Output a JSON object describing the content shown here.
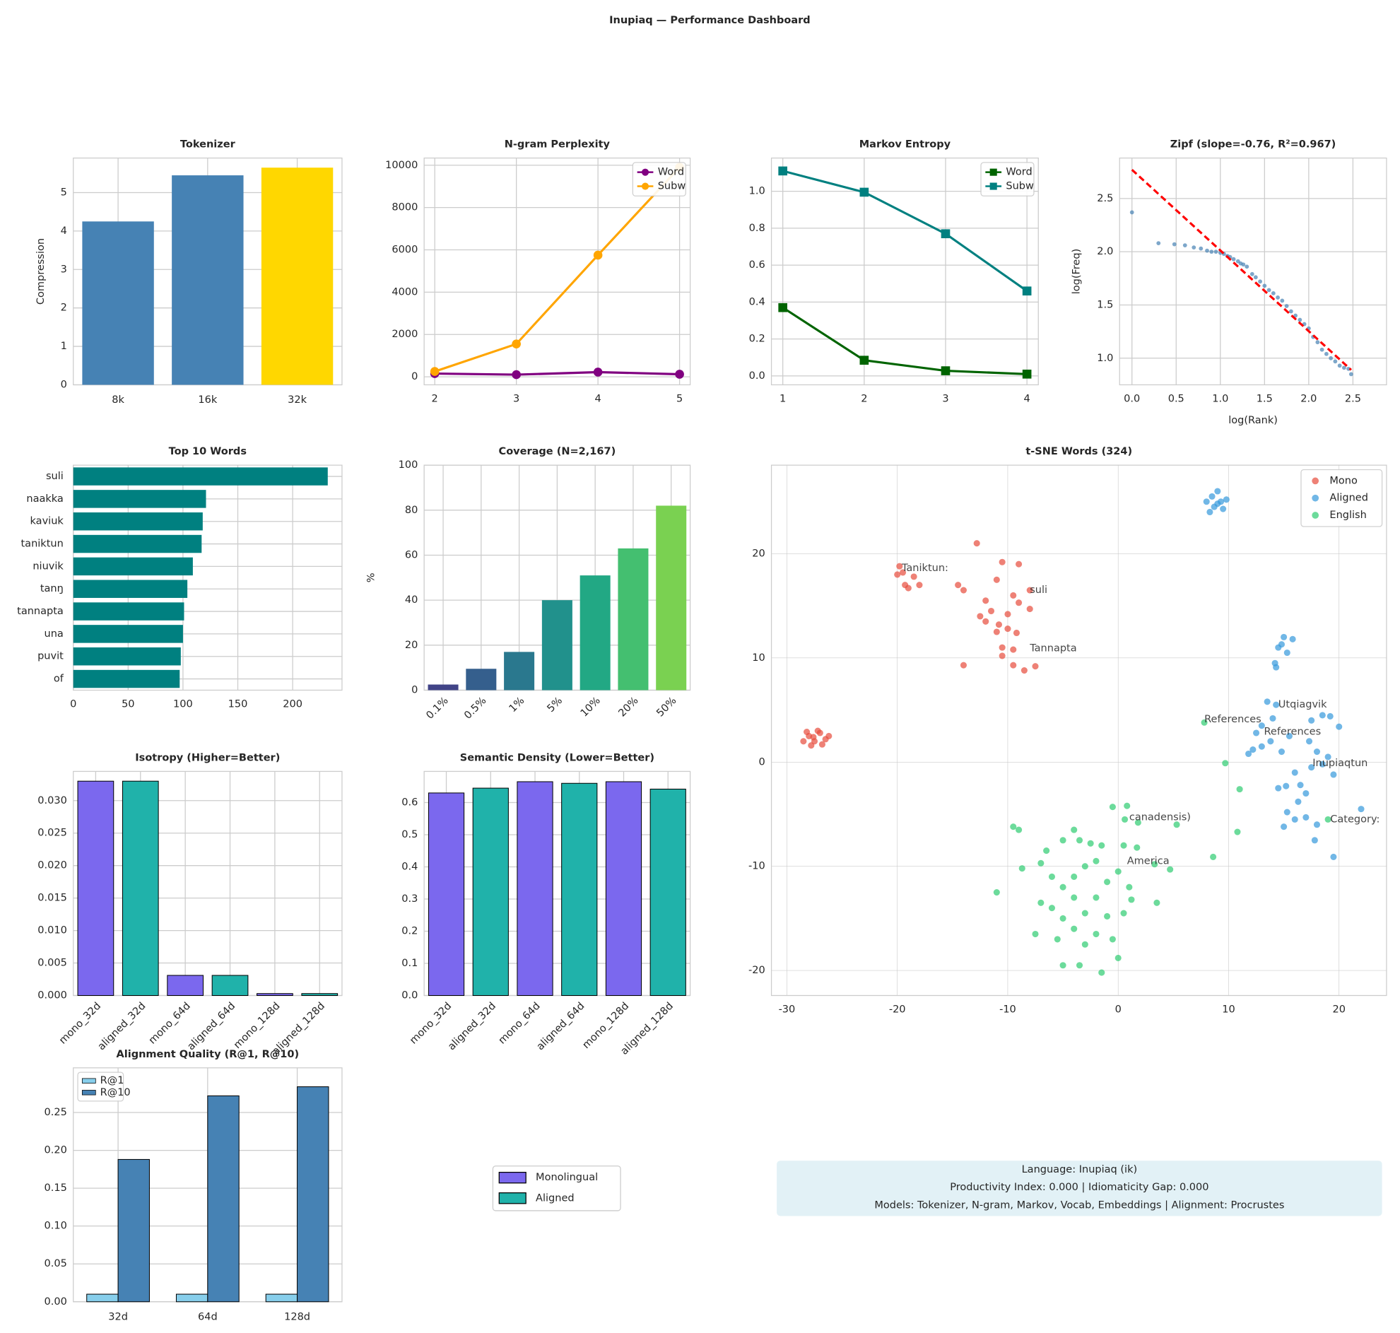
{
  "title": "Inupiaq — Performance Dashboard",
  "chart_data": [
    {
      "type": "bar",
      "title": "Tokenizer",
      "ylabel": "Compression",
      "categories": [
        "8k",
        "16k",
        "32k"
      ],
      "values": [
        4.25,
        5.45,
        5.65
      ],
      "colors": [
        "#4682b4",
        "#4682b4",
        "#ffd700"
      ],
      "ylim": [
        0,
        5.9
      ],
      "yticks": [
        0,
        1,
        2,
        3,
        4,
        5
      ],
      "grid": true
    },
    {
      "type": "line",
      "title": "N-gram Perplexity",
      "x": [
        2,
        3,
        4,
        5
      ],
      "series": [
        {
          "name": "Word",
          "color": "#800080",
          "marker": "circle",
          "values": [
            150,
            100,
            220,
            120
          ]
        },
        {
          "name": "Subw",
          "color": "#ffa500",
          "marker": "circle",
          "values": [
            250,
            1550,
            5750,
            9900
          ]
        }
      ],
      "xlim": [
        1.87,
        5.13
      ],
      "xticks": [
        2,
        3,
        4,
        5
      ],
      "ylim": [
        -380,
        10340
      ],
      "yticks": [
        0,
        2000,
        4000,
        6000,
        8000,
        10000
      ],
      "legend": "upper right",
      "grid": true
    },
    {
      "type": "line",
      "title": "Markov Entropy",
      "x": [
        1,
        2,
        3,
        4
      ],
      "series": [
        {
          "name": "Word",
          "color": "#006400",
          "marker": "square",
          "values": [
            0.37,
            0.085,
            0.028,
            0.01
          ]
        },
        {
          "name": "Subw",
          "color": "#008080",
          "marker": "square",
          "values": [
            1.11,
            0.995,
            0.77,
            0.46
          ]
        }
      ],
      "xlim": [
        0.86,
        4.14
      ],
      "xticks": [
        1,
        2,
        3,
        4
      ],
      "ylim": [
        -0.048,
        1.18
      ],
      "yticks": [
        {
          "value": 0,
          "label": "0.0"
        },
        0.2,
        0.4,
        0.6,
        0.8,
        {
          "value": 1,
          "label": "1.0"
        }
      ],
      "legend": "upper right",
      "grid": true
    },
    {
      "type": "scatter",
      "title": "Zipf (slope=-0.76, R²=0.967)",
      "xlabel": "log(Rank)",
      "ylabel": "log(Freq)",
      "series": [
        {
          "color": "#4682b4",
          "x": [
            0,
            0.3,
            0.48,
            0.6,
            0.7,
            0.78,
            0.85,
            0.9,
            0.95,
            1.0,
            1.04,
            1.08,
            1.11,
            1.15,
            1.2,
            1.23,
            1.26,
            1.3,
            1.36,
            1.4,
            1.45,
            1.5,
            1.55,
            1.6,
            1.65,
            1.7,
            1.75,
            1.8,
            1.85,
            1.9,
            1.95,
            2.0,
            2.05,
            2.1,
            2.15,
            2.2,
            2.25,
            2.3,
            2.35,
            2.4,
            2.45,
            2.48
          ],
          "values": [
            2.37,
            2.08,
            2.07,
            2.06,
            2.04,
            2.03,
            2.01,
            2.0,
            2.0,
            1.99,
            1.98,
            1.96,
            1.95,
            1.93,
            1.91,
            1.89,
            1.88,
            1.86,
            1.79,
            1.76,
            1.72,
            1.68,
            1.64,
            1.61,
            1.57,
            1.54,
            1.49,
            1.44,
            1.4,
            1.36,
            1.32,
            1.28,
            1.2,
            1.15,
            1.08,
            1.04,
            1.0,
            0.97,
            0.93,
            0.91,
            0.9,
            0.85
          ]
        }
      ],
      "fit": {
        "color": "#ff0000",
        "x": [
          0,
          2.48
        ],
        "values": [
          2.77,
          0.89
        ]
      },
      "xlim": [
        -0.14,
        2.88
      ],
      "xticks": [
        {
          "value": 0,
          "label": "0.0"
        },
        0.5,
        {
          "value": 1,
          "label": "1.0"
        },
        1.5,
        {
          "value": 2,
          "label": "2.0"
        },
        2.5
      ],
      "ylim": [
        0.75,
        2.88
      ],
      "yticks": [
        {
          "value": 1,
          "label": "1.0"
        },
        1.5,
        {
          "value": 2,
          "label": "2.0"
        },
        2.5
      ],
      "grid": true
    },
    {
      "type": "barh",
      "title": "Top 10 Words",
      "categories": [
        "suli",
        "naakka",
        "kaviuk",
        "taniktun",
        "niuvik",
        "tanŋ",
        "tannapta",
        "una",
        "puvit",
        "of"
      ],
      "values": [
        232,
        121,
        118,
        117,
        109,
        104,
        101,
        100,
        98,
        97
      ],
      "color": "#008080",
      "xlim": [
        0,
        245
      ],
      "xticks": [
        0,
        50,
        100,
        150,
        200
      ],
      "grid": true
    },
    {
      "type": "bar",
      "title": "Coverage (N=2,167)",
      "ylabel": "%",
      "categories": [
        "0.1%",
        "0.5%",
        "1%",
        "5%",
        "10%",
        "20%",
        "50%"
      ],
      "values": [
        2.5,
        9.5,
        17,
        40,
        51,
        63,
        82
      ],
      "colors": [
        "#414487",
        "#355f8d",
        "#2a788e",
        "#21918c",
        "#22a884",
        "#44bf70",
        "#7ad151"
      ],
      "ylim": [
        0,
        100
      ],
      "yticks": [
        0,
        20,
        40,
        60,
        80,
        100
      ],
      "grid": true
    },
    {
      "type": "bar",
      "title": "Isotropy (Higher=Better)",
      "categories": [
        "mono_32d",
        "aligned_32d",
        "mono_64d",
        "aligned_64d",
        "mono_128d",
        "aligned_128d"
      ],
      "values": [
        0.033,
        0.033,
        0.0031,
        0.0031,
        0.0003,
        0.0003
      ],
      "colors": [
        "#7b68ee",
        "#20b2aa",
        "#7b68ee",
        "#20b2aa",
        "#7b68ee",
        "#20b2aa"
      ],
      "edgecolor": "#000000",
      "ylim": [
        0,
        0.0345
      ],
      "yticks": [
        {
          "value": 0,
          "label": "0.000"
        },
        0.005,
        {
          "value": 0.01,
          "label": "0.010"
        },
        0.015,
        {
          "value": 0.02,
          "label": "0.020"
        },
        0.025,
        {
          "value": 0.03,
          "label": "0.030"
        }
      ],
      "grid": true
    },
    {
      "type": "bar",
      "title": "Semantic Density (Lower=Better)",
      "categories": [
        "mono_32d",
        "aligned_32d",
        "mono_64d",
        "aligned_64d",
        "mono_128d",
        "aligned_128d"
      ],
      "values": [
        0.63,
        0.645,
        0.665,
        0.66,
        0.665,
        0.642
      ],
      "colors": [
        "#7b68ee",
        "#20b2aa",
        "#7b68ee",
        "#20b2aa",
        "#7b68ee",
        "#20b2aa"
      ],
      "edgecolor": "#000000",
      "ylim": [
        0,
        0.697
      ],
      "yticks": [
        {
          "value": 0,
          "label": "0.0"
        },
        0.1,
        0.2,
        0.3,
        0.4,
        0.5,
        0.6
      ],
      "grid": true
    },
    {
      "type": "scatter",
      "title": "t-SNE Words (324)",
      "legend": "upper right",
      "grid": true,
      "xlim": [
        -31.4,
        24.3
      ],
      "xticks": [
        -30,
        -20,
        -10,
        0,
        10,
        20
      ],
      "ylim": [
        -22.4,
        28.5
      ],
      "yticks": [
        -20,
        -10,
        0,
        10,
        20
      ],
      "series": [
        {
          "name": "Mono",
          "color": "#e74c3c",
          "x": [
            -28,
            -27.5,
            -27,
            -26.5,
            -28.5,
            -27.8,
            -26.8,
            -27.2,
            -28.2,
            -26.2,
            -27.6,
            -19.8,
            -20,
            -19.3,
            -18.5,
            -18,
            -19,
            -19.5,
            -12.8,
            -10.5,
            -9,
            -11,
            -14.5,
            -14,
            -12,
            -11.5,
            -12.5,
            -10,
            -9,
            -8,
            -8,
            -9.5,
            -10.8,
            -11,
            -10,
            -9.2,
            -10.5,
            -9.5,
            -9.5,
            -8.5,
            -7.5,
            -10.5,
            -14,
            -12
          ],
          "values": [
            2.5,
            2,
            2.8,
            2.2,
            2,
            1.6,
            1.7,
            3,
            2.9,
            2.5,
            2.4,
            18.8,
            18,
            17,
            17.8,
            17,
            16.7,
            18.2,
            21,
            19.2,
            19,
            17.5,
            17,
            16.5,
            15.5,
            14.5,
            14,
            14.2,
            15.3,
            16.5,
            14.7,
            16,
            13.2,
            12.5,
            12.8,
            12.4,
            11,
            10.8,
            9.3,
            8.8,
            9.2,
            10.2,
            9.3,
            13.5
          ]
        },
        {
          "name": "Aligned",
          "color": "#3498db",
          "x": [
            8.5,
            9,
            9.3,
            8.7,
            8,
            9.5,
            8.3,
            9,
            9.8,
            15,
            15.8,
            14.5,
            15.3,
            14.2,
            14.3,
            14.8,
            13.5,
            14.3,
            14,
            13,
            12.5,
            13.8,
            12.2,
            11.8,
            13,
            14.8,
            15.5,
            17.5,
            18.5,
            19.2,
            20,
            17.3,
            18,
            19,
            18.5,
            17.5,
            16,
            15.2,
            14.5,
            16.5,
            17,
            19.5,
            16.3,
            15.3,
            16,
            17,
            18,
            17.8,
            15,
            22,
            19.5
          ],
          "values": [
            25.5,
            26,
            25,
            24.5,
            25,
            24.3,
            24,
            24.8,
            25.2,
            12,
            11.8,
            11,
            10.5,
            9.5,
            9.1,
            11.3,
            5.8,
            5.5,
            4.2,
            3.5,
            2.8,
            2,
            1.2,
            0.8,
            1.5,
            1,
            2.5,
            4,
            4.5,
            4.4,
            3.4,
            2,
            1,
            0.5,
            -0.2,
            -0.5,
            -1,
            -2.3,
            -2.5,
            -2.2,
            -3,
            -1.2,
            -3.8,
            -4.8,
            -5.5,
            -5.3,
            -6,
            -7.5,
            -6.2,
            -4.5,
            -9.1
          ]
        },
        {
          "name": "English",
          "color": "#2ecc71",
          "x": [
            -9.5,
            -9,
            -11,
            -8.7,
            -7,
            -6.5,
            -5,
            -4,
            -3.5,
            -2.5,
            -1.5,
            0.5,
            1.7,
            -6,
            -5,
            -4,
            -3,
            -2,
            -1,
            0,
            1,
            -7,
            -6,
            -5,
            -4,
            -3,
            -2,
            -1,
            0.5,
            1.2,
            -7.5,
            -5.5,
            -4,
            -3,
            -2,
            -0.5,
            -5,
            -3.5,
            -1.5,
            0,
            3.3,
            4.7,
            3.5,
            -0.5,
            0.8,
            0.6,
            1.8,
            5.3,
            7.8,
            9.7,
            11,
            10.8,
            8.6,
            19
          ],
          "values": [
            -6.2,
            -6.5,
            -12.5,
            -10.2,
            -9.7,
            -8.5,
            -7.5,
            -6.5,
            -7.5,
            -7.8,
            -8,
            -8,
            -8.2,
            -11,
            -12,
            -11,
            -10,
            -9.5,
            -11.5,
            -10.5,
            -12,
            -13.5,
            -14,
            -15,
            -13,
            -14.5,
            -13,
            -14.8,
            -14.5,
            -13.2,
            -16.5,
            -17,
            -16,
            -17.5,
            -16.5,
            -17,
            -19.5,
            -19.5,
            -20.2,
            -18.8,
            -9.8,
            -10.3,
            -13.5,
            -4.3,
            -4.2,
            -5.5,
            -5.8,
            -6,
            3.8,
            -0.1,
            -2.6,
            -6.7,
            -9.1,
            -5.5
          ]
        }
      ],
      "annotations": [
        {
          "text": "suli",
          "x": -8,
          "y": 16.5,
          "color": "#e74c3c"
        },
        {
          "text": "Tannapta",
          "x": -8,
          "y": 10.9,
          "color": "#e74c3c"
        },
        {
          "text": "Taniktun:",
          "x": -19.6,
          "y": 18.6,
          "color": "#e74c3c"
        },
        {
          "text": "Utqiagvik",
          "x": 14.5,
          "y": 5.5,
          "color": "#3498db"
        },
        {
          "text": "References",
          "x": 13.2,
          "y": 2.9,
          "color": "#3498db"
        },
        {
          "text": "Inupiaqtun",
          "x": 17.6,
          "y": -0.1,
          "color": "#3498db"
        },
        {
          "text": "References",
          "x": 7.8,
          "y": 4.1,
          "color": "#2ecc71"
        },
        {
          "text": "Category:",
          "x": 19.2,
          "y": -5.5,
          "color": "#2ecc71"
        },
        {
          "text": "America",
          "x": 0.8,
          "y": -9.5,
          "color": "#2ecc71"
        },
        {
          "text": "canadensis)",
          "x": 1,
          "y": -5.3,
          "color": "#2ecc71"
        }
      ]
    },
    {
      "type": "bar",
      "title": "Alignment Quality (R@1, R@10)",
      "categories": [
        "32d",
        "64d",
        "128d"
      ],
      "series": [
        {
          "name": "R@1",
          "color": "#87ceeb",
          "values": [
            0.01,
            0.01,
            0.01
          ]
        },
        {
          "name": "R@10",
          "color": "#4682b4",
          "values": [
            0.188,
            0.272,
            0.284
          ]
        }
      ],
      "edgecolor": "#000000",
      "legend": "upper left",
      "ylim": [
        0,
        0.309
      ],
      "yticks": [
        {
          "value": 0,
          "label": "0.00"
        },
        0.05,
        {
          "value": 0.1,
          "label": "0.10"
        },
        0.15,
        {
          "value": 0.2,
          "label": "0.20"
        },
        0.25
      ],
      "grid": true
    }
  ],
  "legend": {
    "entries": [
      {
        "name": "Monolingual",
        "color": "#7b68ee"
      },
      {
        "name": "Aligned",
        "color": "#20b2aa"
      }
    ]
  },
  "info": {
    "lines": [
      "Language: Inupiaq (ik)",
      "Productivity Index: 0.000  |  Idiomaticity Gap: 0.000",
      "Models: Tokenizer, N-gram, Markov, Vocab, Embeddings  |  Alignment: Procrustes"
    ]
  }
}
